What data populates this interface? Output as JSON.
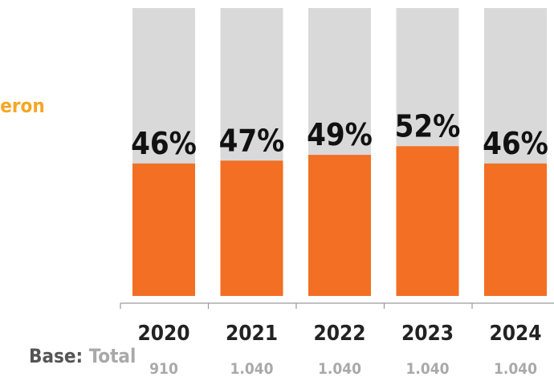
{
  "side_label": "ndieron",
  "base": {
    "label": "Base:",
    "value": "Total"
  },
  "colors": {
    "bar": "#f26f23",
    "track": "#d9d9d9",
    "value_text": "#111111",
    "year_text": "#222222",
    "base_text": "#a9a9a9",
    "axis": "#9a9a9a"
  },
  "chart_data": {
    "type": "bar",
    "categories": [
      "2020",
      "2021",
      "2022",
      "2023",
      "2024"
    ],
    "values": [
      46,
      47,
      49,
      52,
      46
    ],
    "data_labels": [
      "46%",
      "47%",
      "49%",
      "52%",
      "46%"
    ],
    "bases": [
      "910",
      "1.040",
      "1.040",
      "1.040",
      "1.040"
    ],
    "ylim": [
      0,
      100
    ],
    "grid": false,
    "title": "",
    "xlabel": "",
    "ylabel": ""
  }
}
